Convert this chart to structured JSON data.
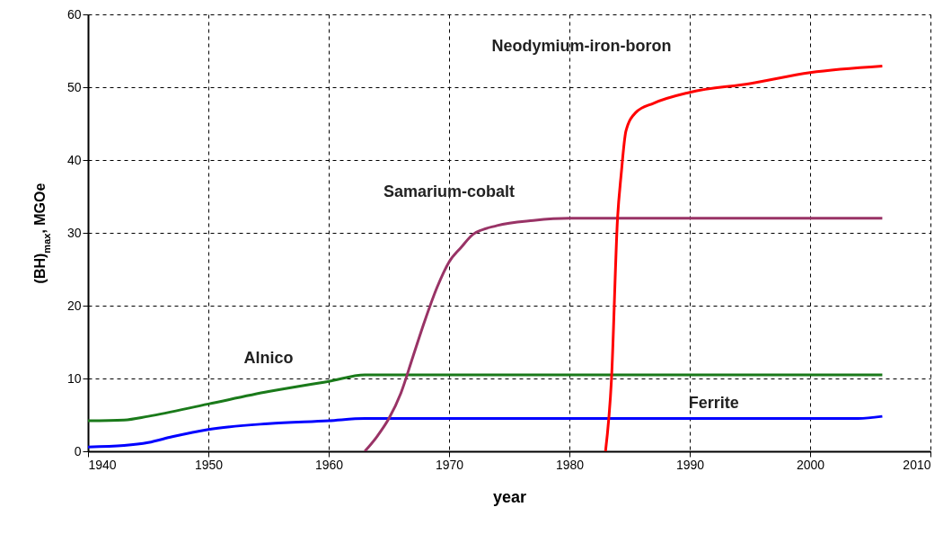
{
  "chart_data": {
    "type": "line",
    "xlabel": "year",
    "ylabel": "(BH)$_{max}$, MGOe",
    "xlim": [
      1940,
      2010
    ],
    "xticks": [
      1940,
      1950,
      1960,
      1970,
      1980,
      1990,
      2000,
      2010
    ],
    "ylim": [
      0,
      60
    ],
    "yticks": [
      0,
      10,
      20,
      30,
      40,
      50,
      60
    ],
    "grid": true,
    "line_style": "solid",
    "marker": "none",
    "series": [
      {
        "name": "Ferrite",
        "color": "#0000ff",
        "x": [
          1940,
          1943,
          1945,
          1947,
          1950,
          1955,
          1960,
          1963,
          2004,
          2006
        ],
        "values": [
          0.6,
          0.8,
          1.2,
          2,
          3,
          3.8,
          4.2,
          4.5,
          4.5,
          4.8
        ]
      },
      {
        "name": "Alnico",
        "color": "#1a7a1a",
        "x": [
          1940,
          1943,
          1945,
          1950,
          1955,
          1960,
          1963,
          2006
        ],
        "values": [
          4.2,
          4.3,
          4.8,
          6.5,
          8.2,
          9.6,
          10.5,
          10.5
        ]
      },
      {
        "name": "Samarium-cobalt",
        "color": "#993366",
        "x": [
          1963,
          1964,
          1965,
          1966,
          1967,
          1968,
          1969,
          1970,
          1971,
          1972,
          1974,
          1977,
          1980,
          2006
        ],
        "values": [
          0,
          2,
          4.5,
          8,
          13,
          18,
          22.5,
          26,
          28,
          29.8,
          31,
          31.7,
          32,
          32
        ]
      },
      {
        "name": "Neodymium-iron-boron",
        "color": "#ff0000",
        "x": [
          1983,
          1983.5,
          1984,
          1984.3,
          1984.7,
          1985.5,
          1987,
          1990,
          1995,
          2000,
          2006
        ],
        "values": [
          0,
          10,
          32,
          38,
          44,
          46.5,
          47.8,
          49.3,
          50.5,
          52,
          52.9
        ]
      }
    ]
  }
}
